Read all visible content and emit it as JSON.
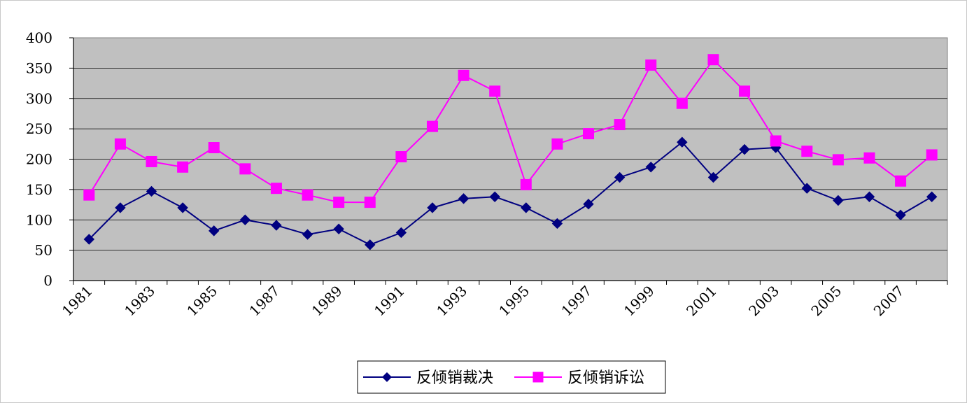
{
  "chart_data": {
    "type": "line",
    "x": [
      1981,
      1982,
      1983,
      1984,
      1985,
      1986,
      1987,
      1988,
      1989,
      1990,
      1991,
      1992,
      1993,
      1994,
      1995,
      1996,
      1997,
      1998,
      1999,
      2000,
      2001,
      2002,
      2003,
      2004,
      2005,
      2006,
      2007,
      2008
    ],
    "x_tick_labels": [
      "1981",
      "1983",
      "1985",
      "1987",
      "1989",
      "1991",
      "1993",
      "1995",
      "1997",
      "1999",
      "2001",
      "2003",
      "2005",
      "2007"
    ],
    "y_tick_labels": [
      "0",
      "50",
      "100",
      "150",
      "200",
      "250",
      "300",
      "350",
      "400"
    ],
    "ylim": [
      0,
      400
    ],
    "grid": "horizontal",
    "plot_background": "#c0c0c0",
    "legend_position": "bottom",
    "series": [
      {
        "name": "反倾销裁决",
        "color": "#000080",
        "marker": "diamond",
        "values": [
          68,
          120,
          147,
          120,
          82,
          100,
          91,
          76,
          85,
          59,
          79,
          120,
          135,
          138,
          120,
          94,
          126,
          170,
          187,
          228,
          170,
          216,
          219,
          152,
          132,
          138,
          108,
          138
        ]
      },
      {
        "name": "反倾销诉讼",
        "color": "#ff00ff",
        "marker": "square",
        "values": [
          141,
          225,
          196,
          187,
          219,
          184,
          152,
          141,
          129,
          129,
          204,
          254,
          338,
          312,
          158,
          225,
          242,
          257,
          355,
          292,
          364,
          312,
          230,
          213,
          199,
          202,
          164,
          207
        ]
      }
    ]
  }
}
